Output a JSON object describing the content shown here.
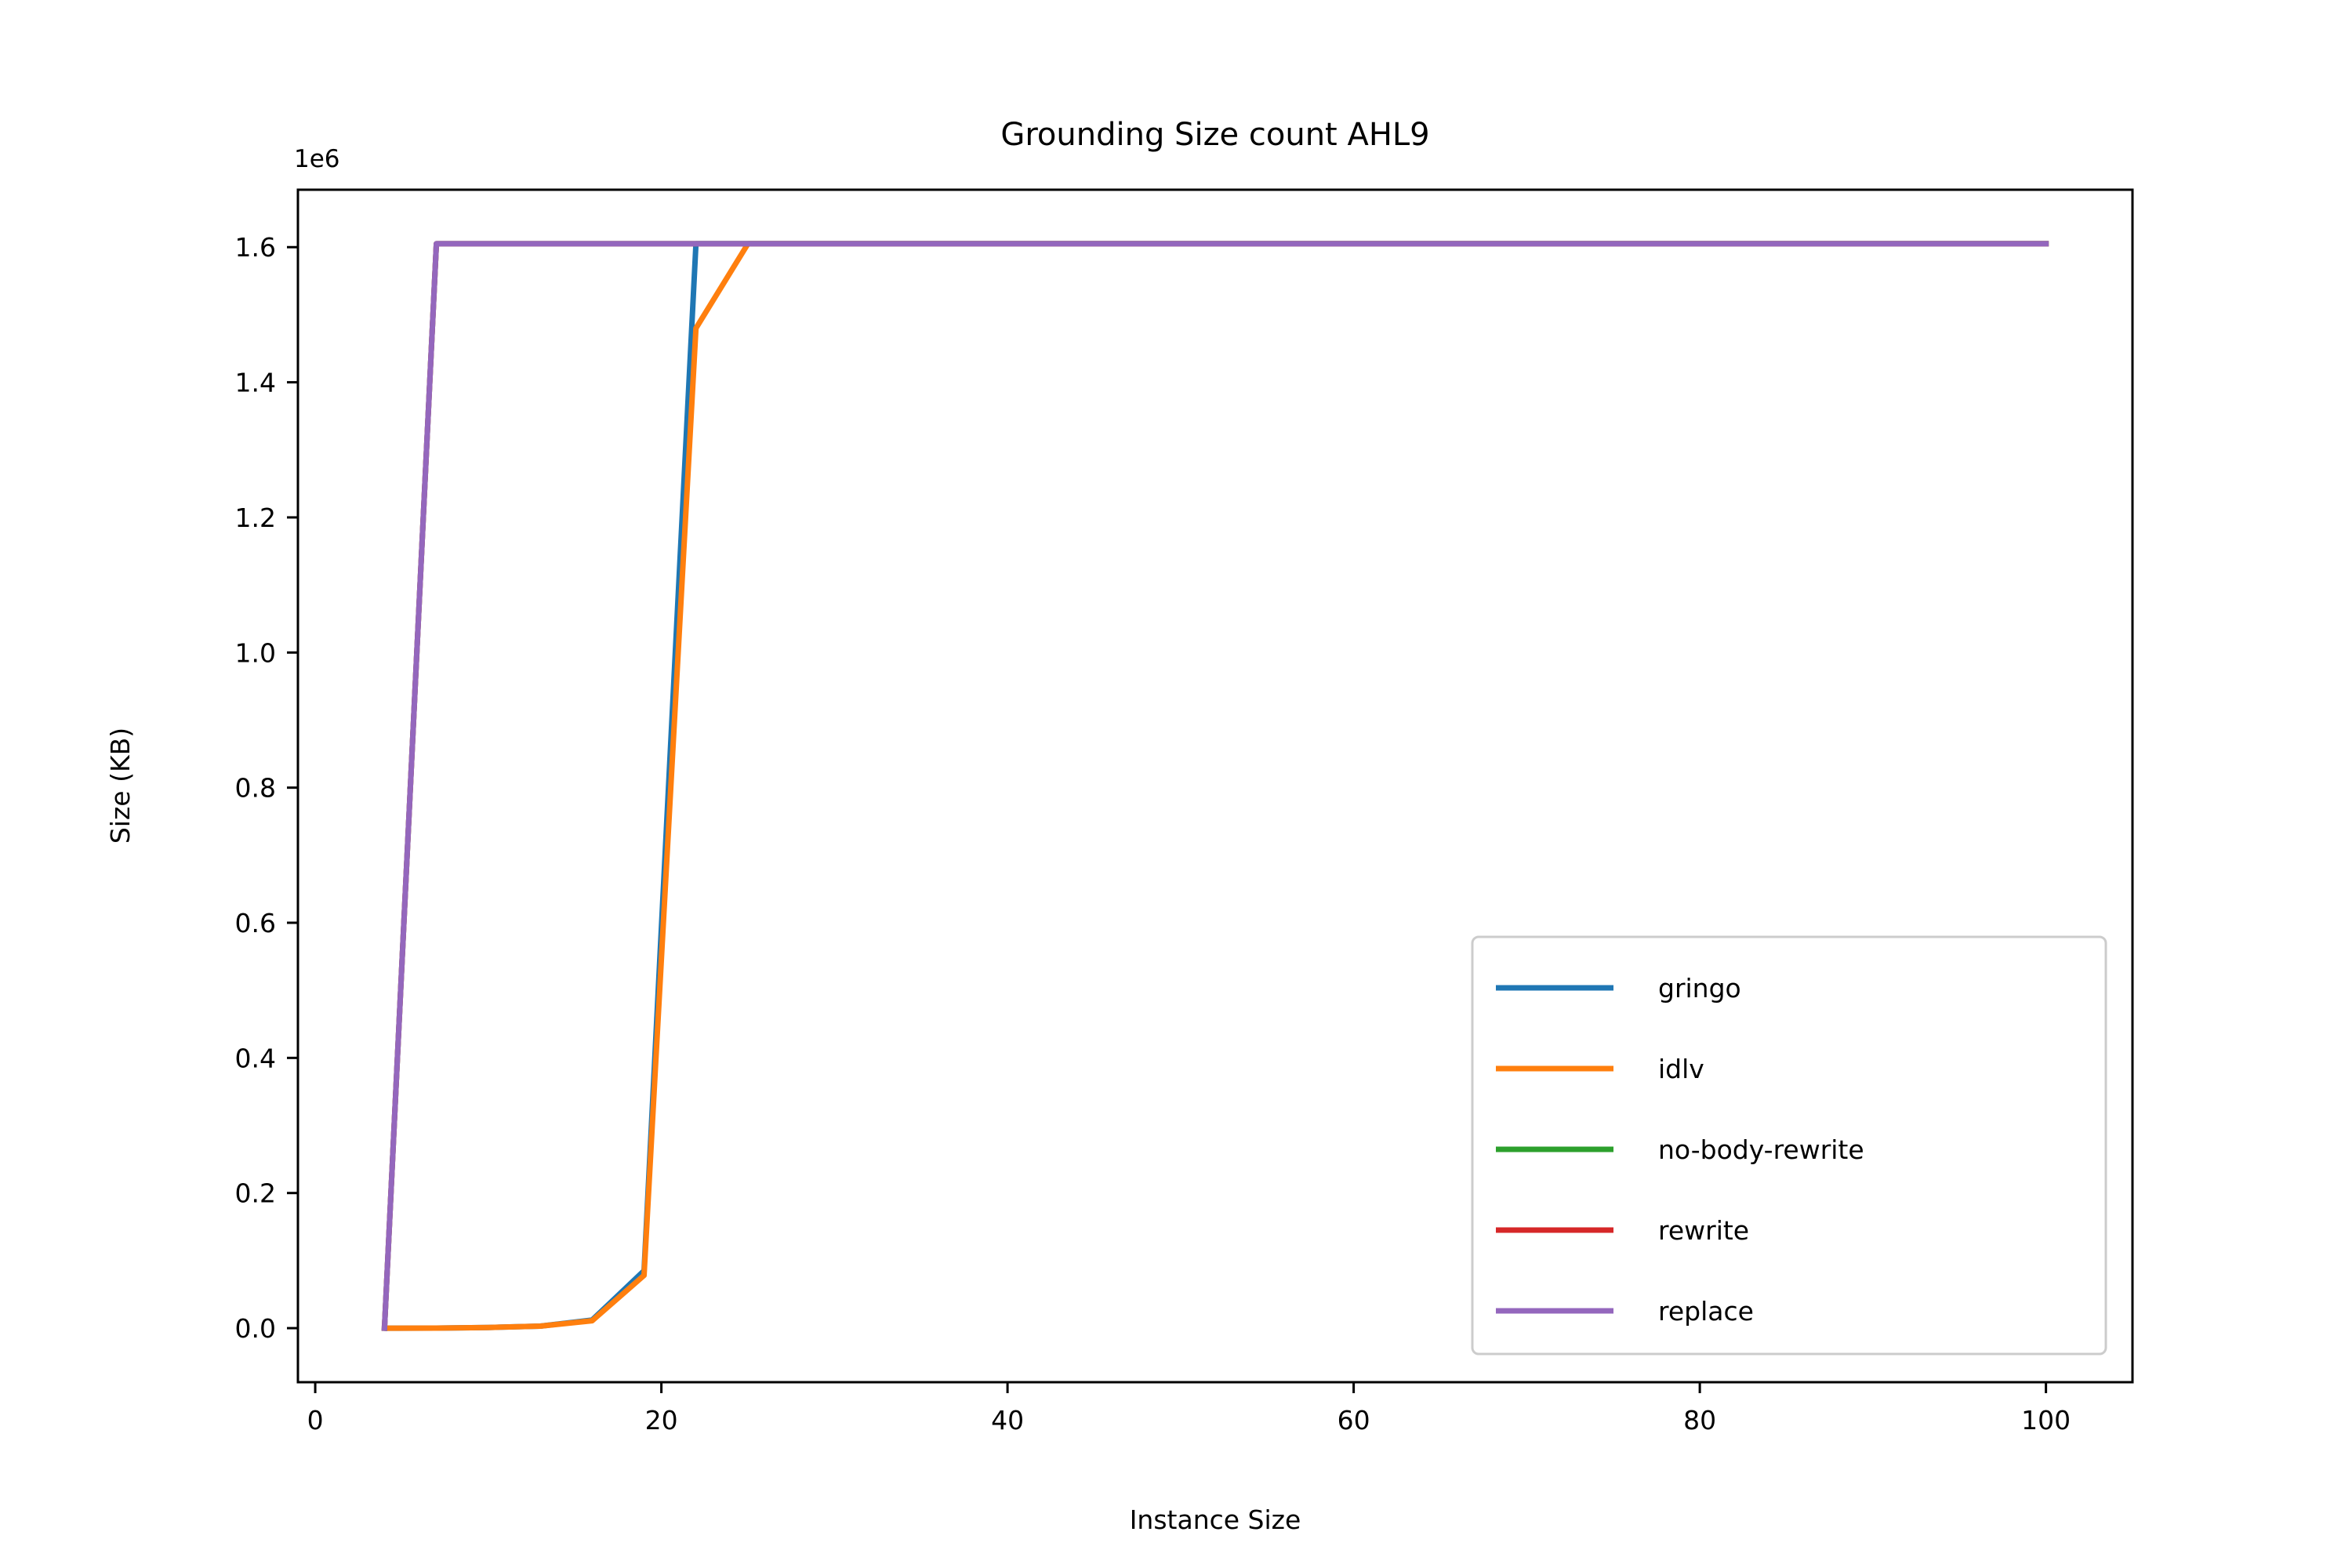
{
  "chart_data": {
    "type": "line",
    "title": "Grounding Size count AHL9",
    "xlabel": "Instance Size",
    "ylabel": "Size (KB)",
    "y_offset_label": "1e6",
    "y_scale_factor": 1000000,
    "xlim": [
      -1,
      105
    ],
    "ylim": [
      -80000,
      1685000
    ],
    "x_ticks": [
      0,
      20,
      40,
      60,
      80,
      100
    ],
    "x_tick_labels": [
      "0",
      "20",
      "40",
      "60",
      "80",
      "100"
    ],
    "y_ticks": [
      0,
      200000,
      400000,
      600000,
      800000,
      1000000,
      1200000,
      1400000,
      1600000
    ],
    "y_tick_labels": [
      "0.0",
      "0.2",
      "0.4",
      "0.6",
      "0.8",
      "1.0",
      "1.2",
      "1.4",
      "1.6"
    ],
    "grid": false,
    "legend_position": "lower-right",
    "x": [
      4,
      7,
      10,
      13,
      16,
      19,
      22,
      25,
      28,
      31,
      34,
      37,
      40,
      43,
      46,
      49,
      52,
      55,
      58,
      61,
      64,
      67,
      70,
      73,
      76,
      79,
      82,
      85,
      88,
      91,
      94,
      97,
      100
    ],
    "series": [
      {
        "name": "gringo",
        "color": "#1f77b4",
        "values": [
          0,
          100,
          1000,
          3000,
          12000,
          85000,
          1605000,
          1605000,
          1605000,
          1605000,
          1605000,
          1605000,
          1605000,
          1605000,
          1605000,
          1605000,
          1605000,
          1605000,
          1605000,
          1605000,
          1605000,
          1605000,
          1605000,
          1605000,
          1605000,
          1605000,
          1605000,
          1605000,
          1605000,
          1605000,
          1605000,
          1605000,
          1605000
        ]
      },
      {
        "name": "idlv",
        "color": "#ff7f0e",
        "values": [
          0,
          100,
          1000,
          3000,
          11000,
          78000,
          1480000,
          1605000,
          1605000,
          1605000,
          1605000,
          1605000,
          1605000,
          1605000,
          1605000,
          1605000,
          1605000,
          1605000,
          1605000,
          1605000,
          1605000,
          1605000,
          1605000,
          1605000,
          1605000,
          1605000,
          1605000,
          1605000,
          1605000,
          1605000,
          1605000,
          1605000,
          1605000
        ]
      },
      {
        "name": "no-body-rewrite",
        "color": "#2ca02c",
        "values": [
          0,
          1605000,
          1605000,
          1605000,
          1605000,
          1605000,
          1605000,
          1605000,
          1605000,
          1605000,
          1605000,
          1605000,
          1605000,
          1605000,
          1605000,
          1605000,
          1605000,
          1605000,
          1605000,
          1605000,
          1605000,
          1605000,
          1605000,
          1605000,
          1605000,
          1605000,
          1605000,
          1605000,
          1605000,
          1605000,
          1605000,
          1605000,
          1605000
        ]
      },
      {
        "name": "rewrite",
        "color": "#d62728",
        "values": [
          0,
          1605000,
          1605000,
          1605000,
          1605000,
          1605000,
          1605000,
          1605000,
          1605000,
          1605000,
          1605000,
          1605000,
          1605000,
          1605000,
          1605000,
          1605000,
          1605000,
          1605000,
          1605000,
          1605000,
          1605000,
          1605000,
          1605000,
          1605000,
          1605000,
          1605000,
          1605000,
          1605000,
          1605000,
          1605000,
          1605000,
          1605000,
          1605000
        ]
      },
      {
        "name": "replace",
        "color": "#9467bd",
        "values": [
          0,
          1605000,
          1605000,
          1605000,
          1605000,
          1605000,
          1605000,
          1605000,
          1605000,
          1605000,
          1605000,
          1605000,
          1605000,
          1605000,
          1605000,
          1605000,
          1605000,
          1605000,
          1605000,
          1605000,
          1605000,
          1605000,
          1605000,
          1605000,
          1605000,
          1605000,
          1605000,
          1605000,
          1605000,
          1605000,
          1605000,
          1605000,
          1605000
        ]
      }
    ]
  }
}
